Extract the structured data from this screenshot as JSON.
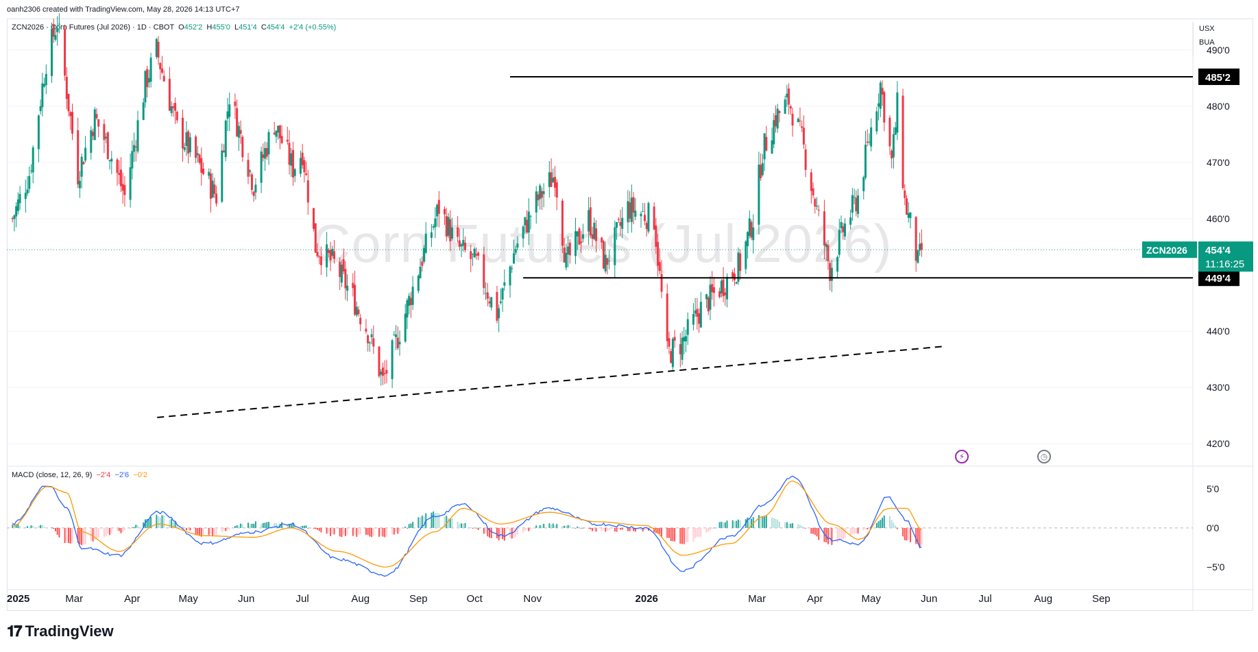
{
  "attribution": "oanh2306 created with TradingView.com, May 28, 2026 14:13 UTC+7",
  "header": {
    "symbol_line": "ZCN2026 · Corn Futures (Jul 2026) · 1D · CBOT",
    "o_label": "O",
    "o_value": "452'2",
    "h_label": "H",
    "h_value": "455'0",
    "l_label": "L",
    "l_value": "451'4",
    "c_label": "C",
    "c_value": "454'4",
    "change": "+2'4 (+0.55%)"
  },
  "units": {
    "currency": "USX",
    "unit": "BUA"
  },
  "watermark": "Corn Futures (Jul 2026)",
  "price_axis": {
    "ticks": [
      {
        "value": 490,
        "label": "490'0"
      },
      {
        "value": 480,
        "label": "480'0"
      },
      {
        "value": 470,
        "label": "470'0"
      },
      {
        "value": 460,
        "label": "460'0"
      },
      {
        "value": 440,
        "label": "440'0"
      },
      {
        "value": 430,
        "label": "430'0"
      },
      {
        "value": 420,
        "label": "420'0"
      }
    ],
    "range": [
      416,
      495
    ]
  },
  "time_axis": {
    "labels": [
      {
        "label": "2025",
        "bold": true
      },
      {
        "label": "Mar",
        "bold": false
      },
      {
        "label": "Apr",
        "bold": false
      },
      {
        "label": "May",
        "bold": false
      },
      {
        "label": "Jun",
        "bold": false
      },
      {
        "label": "Jul",
        "bold": false
      },
      {
        "label": "Aug",
        "bold": false
      },
      {
        "label": "Sep",
        "bold": false
      },
      {
        "label": "Oct",
        "bold": false
      },
      {
        "label": "Nov",
        "bold": false
      },
      {
        "label": "2026",
        "bold": true
      },
      {
        "label": "Mar",
        "bold": false
      },
      {
        "label": "Apr",
        "bold": false
      },
      {
        "label": "May",
        "bold": false
      },
      {
        "label": "Jun",
        "bold": false
      },
      {
        "label": "Jul",
        "bold": false
      },
      {
        "label": "Aug",
        "bold": false
      },
      {
        "label": "Sep",
        "bold": false
      }
    ]
  },
  "badges": {
    "resistance": {
      "value": 485.25,
      "label": "485'2"
    },
    "support": {
      "value": 449.5,
      "label": "449'4"
    },
    "last_symbol": "ZCN2026",
    "last_price": {
      "value": 454.5,
      "label": "454'4"
    },
    "countdown": "11:16:25"
  },
  "macd": {
    "title": "MACD (close, 12, 26, 9)",
    "hist_value": "−2'4",
    "macd_value": "−2'6",
    "signal_value": "−0'2",
    "ticks": [
      {
        "value": 5,
        "label": "5'0"
      },
      {
        "value": 0,
        "label": "0'0"
      },
      {
        "value": -5,
        "label": "−5'0"
      }
    ],
    "range": [
      -7,
      7
    ]
  },
  "colors": {
    "up": "#089981",
    "down": "#f23645",
    "macd_line": "#2962ff",
    "signal_line": "#ff9800",
    "badge_green": "#089981",
    "badge_black": "#000000"
  },
  "icons": [
    "lightning-icon",
    "clock-icon"
  ],
  "logo": "TradingView",
  "chart_data": {
    "type": "candlestick",
    "title": "ZCN2026 · Corn Futures (Jul 2026) · 1D · CBOT",
    "price_series_approx": [
      {
        "date": "2025-01-27",
        "close": 460
      },
      {
        "date": "2025-02-05",
        "close": 468
      },
      {
        "date": "2025-02-14",
        "close": 488
      },
      {
        "date": "2025-02-20",
        "close": 495
      },
      {
        "date": "2025-03-03",
        "close": 468
      },
      {
        "date": "2025-03-12",
        "close": 478
      },
      {
        "date": "2025-03-20",
        "close": 472
      },
      {
        "date": "2025-03-28",
        "close": 464
      },
      {
        "date": "2025-04-08",
        "close": 484
      },
      {
        "date": "2025-04-14",
        "close": 490
      },
      {
        "date": "2025-04-25",
        "close": 476
      },
      {
        "date": "2025-05-06",
        "close": 470
      },
      {
        "date": "2025-05-16",
        "close": 464
      },
      {
        "date": "2025-05-23",
        "close": 482
      },
      {
        "date": "2025-06-05",
        "close": 466
      },
      {
        "date": "2025-06-16",
        "close": 477
      },
      {
        "date": "2025-06-26",
        "close": 469
      },
      {
        "date": "2025-07-01",
        "close": 472
      },
      {
        "date": "2025-07-08",
        "close": 455
      },
      {
        "date": "2025-07-18",
        "close": 452
      },
      {
        "date": "2025-07-28",
        "close": 446
      },
      {
        "date": "2025-08-05",
        "close": 440
      },
      {
        "date": "2025-08-13",
        "close": 431
      },
      {
        "date": "2025-08-22",
        "close": 440
      },
      {
        "date": "2025-09-02",
        "close": 452
      },
      {
        "date": "2025-09-12",
        "close": 462
      },
      {
        "date": "2025-09-22",
        "close": 455
      },
      {
        "date": "2025-10-02",
        "close": 452
      },
      {
        "date": "2025-10-13",
        "close": 443
      },
      {
        "date": "2025-10-23",
        "close": 455
      },
      {
        "date": "2025-11-03",
        "close": 463
      },
      {
        "date": "2025-11-13",
        "close": 468
      },
      {
        "date": "2025-11-19",
        "close": 452
      },
      {
        "date": "2025-12-01",
        "close": 460
      },
      {
        "date": "2025-12-10",
        "close": 452
      },
      {
        "date": "2025-12-22",
        "close": 462
      },
      {
        "date": "2026-01-05",
        "close": 460
      },
      {
        "date": "2026-01-12",
        "close": 436
      },
      {
        "date": "2026-01-20",
        "close": 438
      },
      {
        "date": "2026-01-30",
        "close": 444
      },
      {
        "date": "2026-02-10",
        "close": 448
      },
      {
        "date": "2026-02-20",
        "close": 452
      },
      {
        "date": "2026-02-27",
        "close": 460
      },
      {
        "date": "2026-03-04",
        "close": 472
      },
      {
        "date": "2026-03-11",
        "close": 478
      },
      {
        "date": "2026-03-18",
        "close": 481
      },
      {
        "date": "2026-03-25",
        "close": 474
      },
      {
        "date": "2026-04-01",
        "close": 463
      },
      {
        "date": "2026-04-09",
        "close": 451
      },
      {
        "date": "2026-04-16",
        "close": 458
      },
      {
        "date": "2026-04-24",
        "close": 464
      },
      {
        "date": "2026-05-01",
        "close": 476
      },
      {
        "date": "2026-05-06",
        "close": 484
      },
      {
        "date": "2026-05-12",
        "close": 470
      },
      {
        "date": "2026-05-15",
        "close": 480
      },
      {
        "date": "2026-05-19",
        "close": 463
      },
      {
        "date": "2026-05-22",
        "close": 459
      },
      {
        "date": "2026-05-26",
        "close": 452
      },
      {
        "date": "2026-05-28",
        "close": 454.5
      }
    ],
    "horizontal_lines": [
      {
        "value": 485.25,
        "from": "2025-10-20",
        "to": "2026-06-30"
      },
      {
        "value": 449.5,
        "from": "2025-10-27",
        "to": "2026-06-30"
      }
    ],
    "trendline": {
      "from": {
        "date": "2025-06-01",
        "value": 426.5
      },
      "to": {
        "date": "2026-06-30",
        "value": 438.5
      },
      "style": "dashed"
    },
    "macd_series_approx": [
      {
        "date": "2025-01-27",
        "macd": 0.5,
        "signal": 0.2
      },
      {
        "date": "2025-02-15",
        "macd": 5.5,
        "signal": 5.3
      },
      {
        "date": "2025-02-25",
        "macd": 2.5,
        "signal": 4.5
      },
      {
        "date": "2025-03-05",
        "macd": -2.5,
        "signal": -0.5
      },
      {
        "date": "2025-03-25",
        "macd": -3.5,
        "signal": -3.0
      },
      {
        "date": "2025-04-15",
        "macd": 2.0,
        "signal": 0.5
      },
      {
        "date": "2025-05-10",
        "macd": -2.0,
        "signal": -1.0
      },
      {
        "date": "2025-06-05",
        "macd": -0.5,
        "signal": -1.2
      },
      {
        "date": "2025-06-25",
        "macd": 0.5,
        "signal": 0.0
      },
      {
        "date": "2025-07-20",
        "macd": -4.0,
        "signal": -3.0
      },
      {
        "date": "2025-08-15",
        "macd": -6.0,
        "signal": -5.0
      },
      {
        "date": "2025-09-10",
        "macd": 1.5,
        "signal": -0.5
      },
      {
        "date": "2025-09-25",
        "macd": 3.0,
        "signal": 2.5
      },
      {
        "date": "2025-10-15",
        "macd": -1.0,
        "signal": 0.5
      },
      {
        "date": "2025-11-10",
        "macd": 2.5,
        "signal": 2.0
      },
      {
        "date": "2025-12-05",
        "macd": 0.5,
        "signal": 0.8
      },
      {
        "date": "2026-01-01",
        "macd": 0.0,
        "signal": 0.3
      },
      {
        "date": "2026-01-20",
        "macd": -5.5,
        "signal": -3.5
      },
      {
        "date": "2026-02-15",
        "macd": -1.0,
        "signal": -2.0
      },
      {
        "date": "2026-03-05",
        "macd": 3.0,
        "signal": 1.5
      },
      {
        "date": "2026-03-20",
        "macd": 6.5,
        "signal": 6.0
      },
      {
        "date": "2026-04-10",
        "macd": -1.5,
        "signal": 0.5
      },
      {
        "date": "2026-04-25",
        "macd": -2.0,
        "signal": -1.5
      },
      {
        "date": "2026-05-10",
        "macd": 4.0,
        "signal": 2.5
      },
      {
        "date": "2026-05-20",
        "macd": 1.0,
        "signal": 2.5
      },
      {
        "date": "2026-05-28",
        "macd": -2.6,
        "signal": -0.2
      }
    ]
  }
}
